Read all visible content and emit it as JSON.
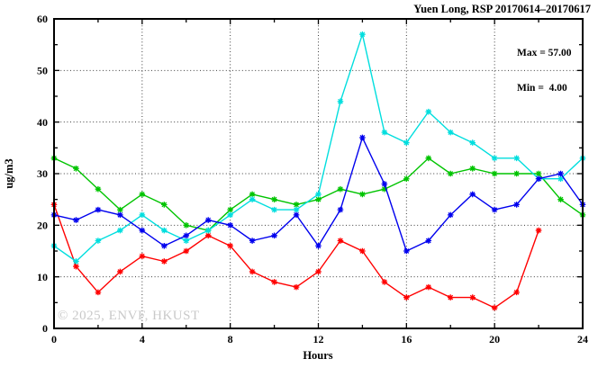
{
  "header": {
    "title": "Yuen Long, RSP 20170614–20170617"
  },
  "annotation": {
    "max_label": "Max = 57.00",
    "min_label": "Min =  4.00"
  },
  "watermark": "© 2025, ENVF, HKUST",
  "chart_data": {
    "type": "line",
    "title": "Yuen Long, RSP 20170614–20170617",
    "xlabel": "Hours",
    "ylabel": "ug/m3",
    "xlim": [
      0,
      24
    ],
    "ylim": [
      0,
      60
    ],
    "x_major_ticks": [
      0,
      4,
      8,
      12,
      16,
      20,
      24
    ],
    "x_minor_step": 2,
    "y_major_ticks": [
      0,
      10,
      20,
      30,
      40,
      50,
      60
    ],
    "y_minor_step": 5,
    "grid": "dotted",
    "legend": "none",
    "stats": {
      "max": 57.0,
      "min": 4.0
    },
    "x_unit": "hour",
    "series": [
      {
        "name": "red",
        "color": "#ff0000",
        "x_start": 0,
        "values": [
          24,
          12,
          7,
          11,
          14,
          13,
          15,
          18,
          16,
          11,
          9,
          8,
          11,
          17,
          15,
          9,
          6,
          8,
          6,
          6,
          4,
          7,
          19
        ]
      },
      {
        "name": "green",
        "color": "#00c400",
        "x_start": 0,
        "values": [
          33,
          31,
          27,
          23,
          26,
          24,
          20,
          19,
          23,
          26,
          25,
          24,
          25,
          27,
          26,
          27,
          29,
          33,
          30,
          31,
          30,
          30,
          30,
          25,
          22
        ]
      },
      {
        "name": "cyan",
        "color": "#00dede",
        "x_start": 0,
        "values": [
          16,
          13,
          17,
          19,
          22,
          19,
          17,
          19,
          22,
          25,
          23,
          23,
          26,
          44,
          57,
          38,
          36,
          42,
          38,
          36,
          33,
          33,
          29,
          29,
          33
        ]
      },
      {
        "name": "blue",
        "color": "#0000ee",
        "x_start": 0,
        "values": [
          22,
          21,
          23,
          22,
          19,
          16,
          18,
          21,
          20,
          17,
          18,
          22,
          16,
          23,
          37,
          28,
          15,
          17,
          22,
          26,
          23,
          24,
          29,
          30,
          24
        ]
      }
    ]
  }
}
